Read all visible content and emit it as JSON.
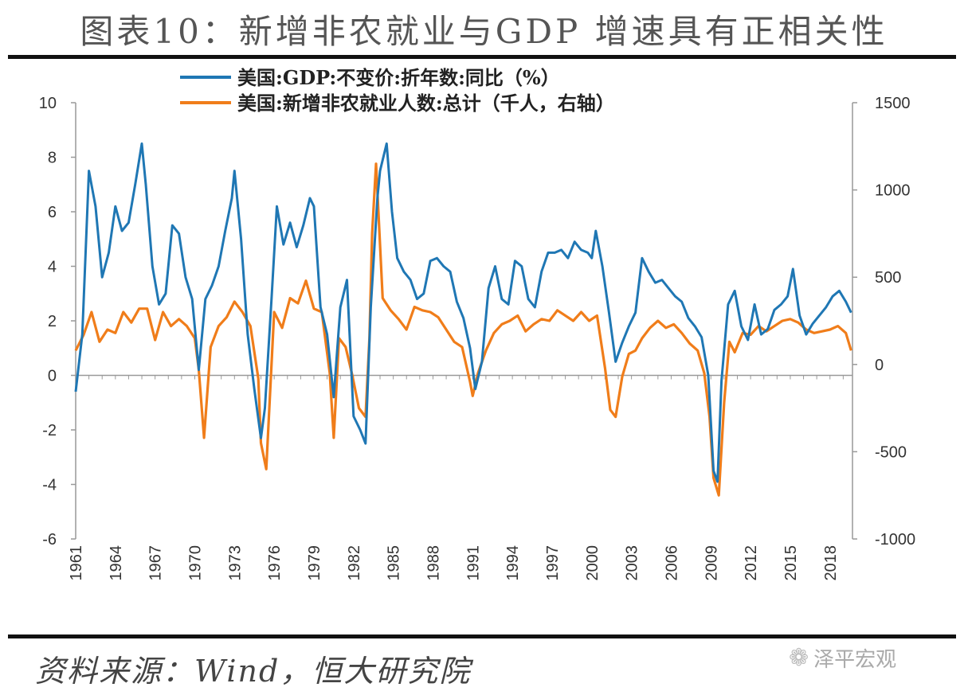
{
  "title": "图表10：新增非农就业与GDP 增速具有正相关性",
  "source": "资料来源：Wind，恒大研究院",
  "watermark": {
    "text": "泽平宏观",
    "icon": "wechat-icon"
  },
  "colors": {
    "gdp": "#1f77b4",
    "payrolls": "#f07d1a",
    "axis": "#999999"
  },
  "chart_data": {
    "type": "line",
    "legend_placement": "top",
    "grid": false,
    "x_ticks": [
      "1961",
      "1964",
      "1967",
      "1970",
      "1973",
      "1976",
      "1979",
      "1982",
      "1985",
      "1988",
      "1991",
      "1994",
      "1997",
      "2000",
      "2003",
      "2006",
      "2009",
      "2012",
      "2015",
      "2018"
    ],
    "xlim": [
      1961,
      2019.7
    ],
    "y_left": {
      "ylim": [
        -6,
        10
      ],
      "ticks": [
        "10",
        "8",
        "6",
        "4",
        "2",
        "0",
        "-2",
        "-4",
        "-6"
      ]
    },
    "y_right": {
      "ylim": [
        -1000,
        1500
      ],
      "ticks": [
        "1500",
        "1000",
        "500",
        "0",
        "-500",
        "-1000"
      ]
    },
    "series": [
      {
        "name": "美国:GDP:不变价:折年数:同比（%）",
        "axis": "left",
        "x": [
          1961.0,
          1961.5,
          1962.0,
          1962.5,
          1963.0,
          1963.5,
          1964.0,
          1964.5,
          1965.0,
          1965.5,
          1966.0,
          1966.3,
          1966.8,
          1967.3,
          1967.8,
          1968.3,
          1968.8,
          1969.3,
          1969.8,
          1970.3,
          1970.8,
          1971.3,
          1971.8,
          1972.3,
          1972.8,
          1973.0,
          1973.5,
          1974.0,
          1974.5,
          1975.0,
          1975.3,
          1975.8,
          1976.2,
          1976.7,
          1977.2,
          1977.7,
          1978.2,
          1978.7,
          1979.0,
          1979.5,
          1980.0,
          1980.5,
          1981.0,
          1981.5,
          1982.0,
          1982.5,
          1982.9,
          1983.3,
          1983.8,
          1984.0,
          1984.5,
          1984.9,
          1985.3,
          1985.8,
          1986.3,
          1986.8,
          1987.3,
          1987.8,
          1988.3,
          1988.8,
          1989.3,
          1989.8,
          1990.3,
          1990.8,
          1991.2,
          1991.7,
          1992.2,
          1992.7,
          1993.2,
          1993.7,
          1994.2,
          1994.7,
          1995.2,
          1995.7,
          1996.2,
          1996.7,
          1997.2,
          1997.7,
          1998.2,
          1998.7,
          1999.2,
          1999.7,
          2000.0,
          2000.3,
          2000.8,
          2001.3,
          2001.8,
          2002.3,
          2002.8,
          2003.3,
          2003.8,
          2004.3,
          2004.8,
          2005.3,
          2005.8,
          2006.3,
          2006.8,
          2007.3,
          2007.8,
          2008.3,
          2008.8,
          2009.2,
          2009.5,
          2009.8,
          2010.3,
          2010.8,
          2011.3,
          2011.8,
          2012.3,
          2012.8,
          2013.3,
          2013.8,
          2014.3,
          2014.8,
          2015.2,
          2015.7,
          2016.2,
          2016.7,
          2017.2,
          2017.7,
          2018.2,
          2018.7,
          2019.2,
          2019.6
        ],
        "values": [
          -0.6,
          1.5,
          7.5,
          6.2,
          3.6,
          4.5,
          6.2,
          5.3,
          5.6,
          7.0,
          8.5,
          7.0,
          4.0,
          2.6,
          3.0,
          5.5,
          5.2,
          3.6,
          2.8,
          0.2,
          2.8,
          3.3,
          4.0,
          5.3,
          6.5,
          7.5,
          5.0,
          1.5,
          -0.5,
          -2.3,
          -1.2,
          2.8,
          6.2,
          4.8,
          5.6,
          4.7,
          5.5,
          6.5,
          6.2,
          2.5,
          1.5,
          -0.8,
          2.5,
          3.5,
          -1.5,
          -2.0,
          -2.5,
          2.5,
          6.5,
          7.5,
          8.5,
          6.0,
          4.3,
          3.8,
          3.5,
          2.8,
          3.0,
          4.2,
          4.3,
          4.0,
          3.8,
          2.7,
          2.1,
          1.0,
          -0.5,
          0.5,
          3.2,
          4.0,
          2.8,
          2.6,
          4.2,
          4.0,
          2.8,
          2.5,
          3.8,
          4.5,
          4.5,
          4.6,
          4.3,
          4.9,
          4.6,
          4.5,
          4.3,
          5.3,
          4.0,
          2.3,
          0.5,
          1.2,
          1.8,
          2.3,
          4.3,
          3.8,
          3.4,
          3.5,
          3.2,
          2.9,
          2.7,
          2.1,
          1.8,
          1.4,
          0.0,
          -3.5,
          -3.9,
          -0.2,
          2.6,
          3.1,
          1.8,
          1.3,
          2.6,
          1.5,
          1.7,
          2.4,
          2.6,
          2.9,
          3.9,
          2.2,
          1.5,
          1.9,
          2.2,
          2.5,
          2.9,
          3.1,
          2.7,
          2.3
        ]
      },
      {
        "name": "美国:新增非农就业人数:总计（千人，右轴）",
        "axis": "right",
        "x": [
          1961.0,
          1961.6,
          1962.2,
          1962.8,
          1963.4,
          1964.0,
          1964.6,
          1965.2,
          1965.8,
          1966.4,
          1967.0,
          1967.6,
          1968.2,
          1968.8,
          1969.4,
          1970.0,
          1970.3,
          1970.7,
          1971.2,
          1971.8,
          1972.4,
          1973.0,
          1973.6,
          1974.2,
          1974.8,
          1975.0,
          1975.4,
          1976.0,
          1976.6,
          1977.2,
          1977.8,
          1978.4,
          1979.0,
          1979.6,
          1980.2,
          1980.5,
          1980.9,
          1981.4,
          1981.9,
          1982.4,
          1982.9,
          1983.2,
          1983.4,
          1983.7,
          1984.2,
          1984.8,
          1985.4,
          1986.0,
          1986.6,
          1987.2,
          1987.8,
          1988.4,
          1989.0,
          1989.6,
          1990.2,
          1990.8,
          1991.0,
          1991.4,
          1992.0,
          1992.6,
          1993.2,
          1993.8,
          1994.4,
          1995.0,
          1995.6,
          1996.2,
          1996.8,
          1997.4,
          1998.0,
          1998.6,
          1999.2,
          1999.8,
          2000.4,
          2001.0,
          2001.4,
          2001.8,
          2002.3,
          2002.8,
          2003.3,
          2003.8,
          2004.4,
          2005.0,
          2005.6,
          2006.2,
          2006.8,
          2007.4,
          2008.0,
          2008.5,
          2008.9,
          2009.2,
          2009.6,
          2010.0,
          2010.4,
          2010.8,
          2011.4,
          2012.0,
          2012.6,
          2013.2,
          2013.8,
          2014.4,
          2015.0,
          2015.6,
          2016.2,
          2016.8,
          2017.4,
          2018.0,
          2018.6,
          2019.2,
          2019.6
        ],
        "values": [
          80,
          170,
          300,
          130,
          200,
          180,
          300,
          240,
          320,
          320,
          140,
          300,
          220,
          260,
          220,
          150,
          -30,
          -420,
          100,
          220,
          270,
          360,
          300,
          220,
          -80,
          -450,
          -600,
          300,
          210,
          380,
          350,
          480,
          320,
          300,
          -50,
          -420,
          150,
          100,
          -60,
          -250,
          -300,
          150,
          750,
          1150,
          380,
          310,
          260,
          200,
          330,
          310,
          300,
          270,
          200,
          130,
          100,
          -100,
          -180,
          -50,
          80,
          180,
          230,
          250,
          280,
          190,
          230,
          260,
          250,
          310,
          280,
          250,
          300,
          250,
          280,
          -20,
          -260,
          -300,
          -70,
          60,
          80,
          150,
          210,
          250,
          210,
          230,
          180,
          120,
          80,
          -50,
          -300,
          -650,
          -750,
          -220,
          130,
          70,
          180,
          170,
          220,
          190,
          220,
          250,
          260,
          240,
          200,
          180,
          190,
          200,
          220,
          180,
          80
        ]
      }
    ]
  }
}
